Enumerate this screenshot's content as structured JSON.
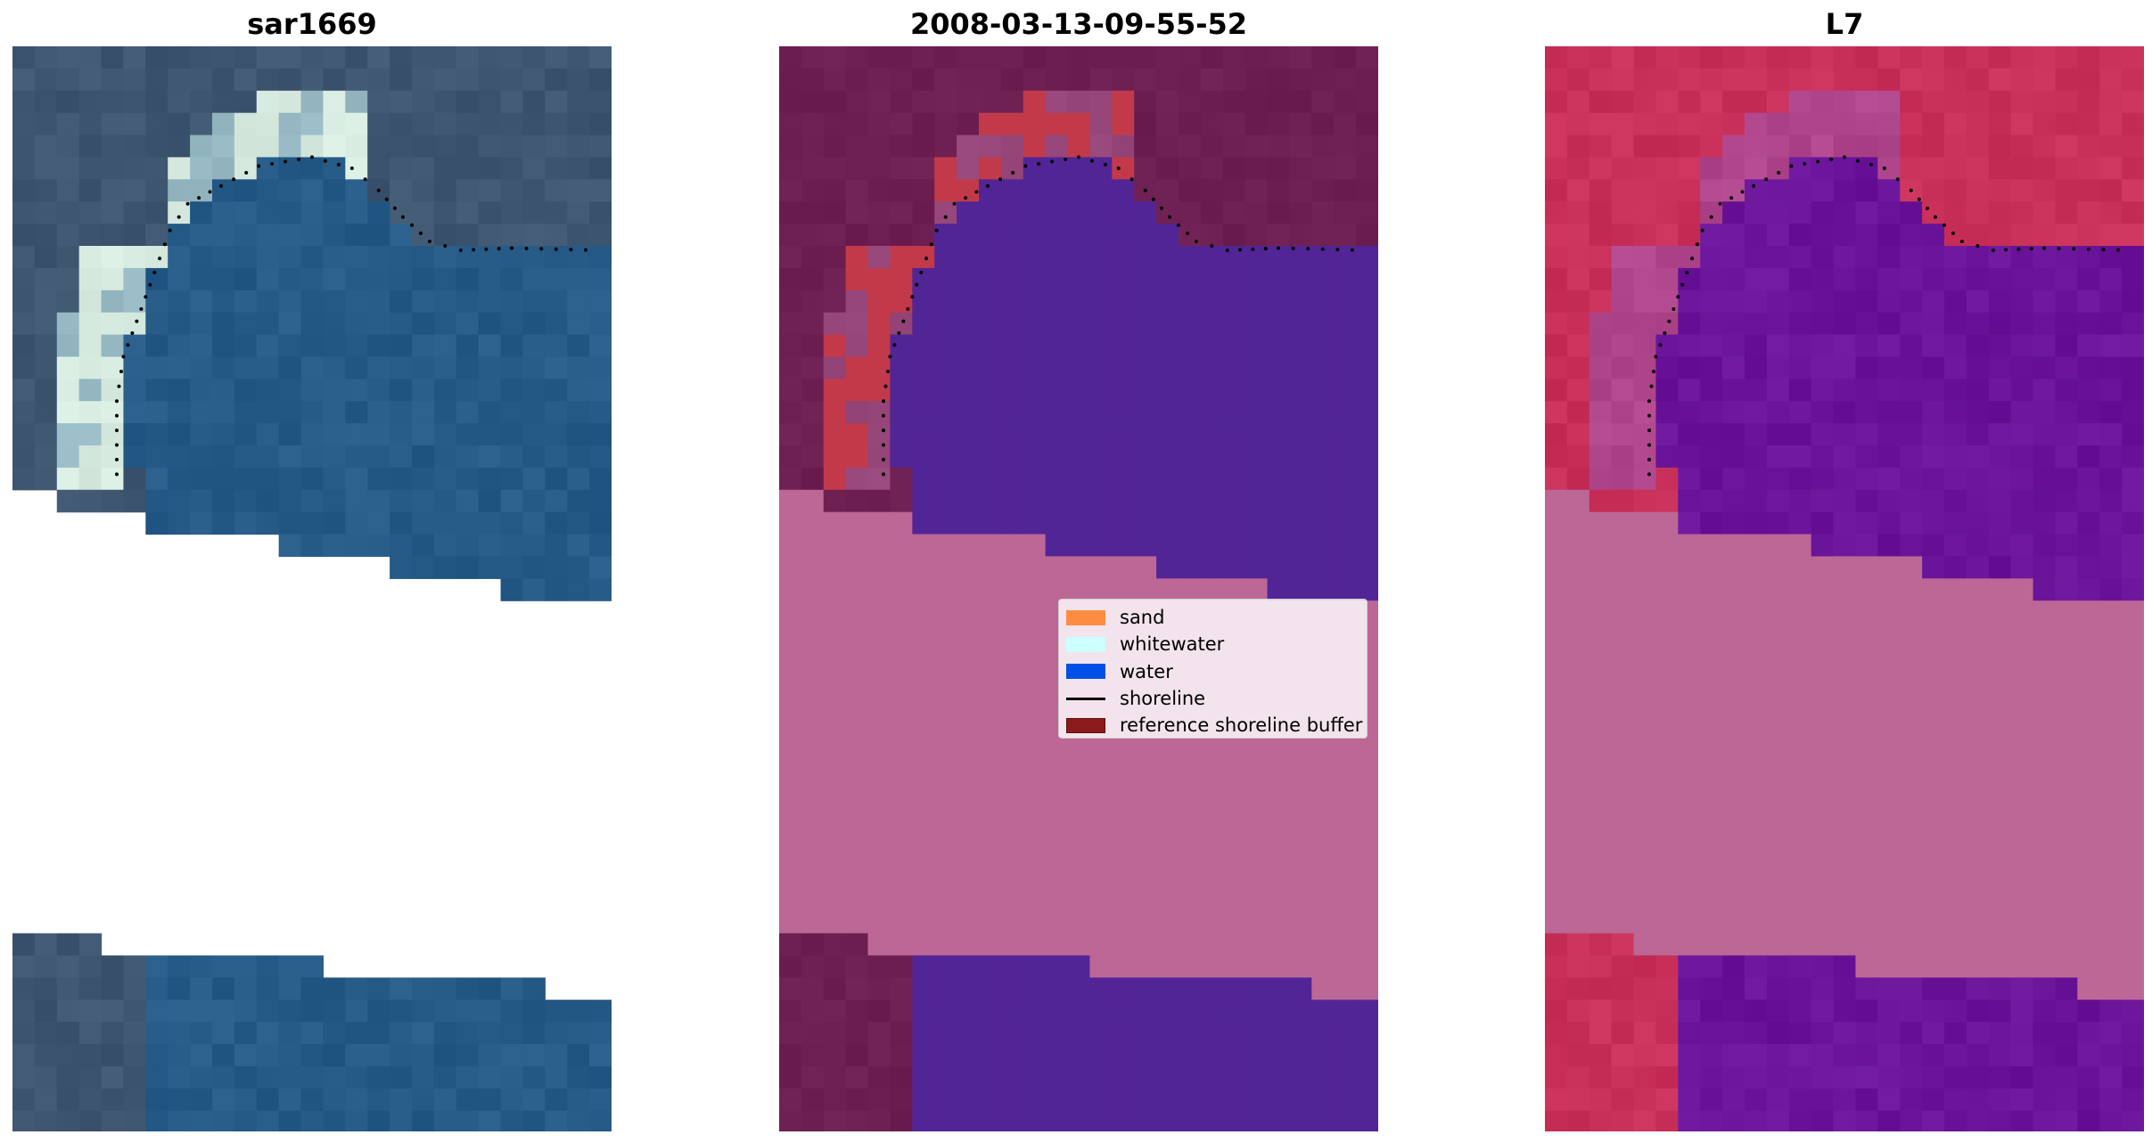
{
  "panels": [
    {
      "title": "sar1669",
      "type": "rgb"
    },
    {
      "title": "2008-03-13-09-55-52",
      "type": "classified"
    },
    {
      "title": "L7",
      "type": "mndwi"
    }
  ],
  "legend": {
    "items": [
      {
        "label": "sand",
        "kind": "patch",
        "color": "#ff8c42"
      },
      {
        "label": "whitewater",
        "kind": "patch",
        "color": "#ccffff"
      },
      {
        "label": "water",
        "kind": "patch",
        "color": "#0050e6"
      },
      {
        "label": "shoreline",
        "kind": "line",
        "color": "#000000"
      },
      {
        "label": "reference shoreline buffer",
        "kind": "patch",
        "color": "#8b1a1a"
      }
    ]
  },
  "colors": {
    "land_dark": "#6e1f52",
    "water_class": "#522596",
    "nodata_overlay": "#bc6796",
    "sand_buffer": "#c23a4a",
    "mndwi_land": "#c8305a",
    "mndwi_water": "#6a1599",
    "rgb_land": "#3d5670",
    "rgb_water": "#23588a",
    "rgb_beach": "#e8f2ec"
  }
}
